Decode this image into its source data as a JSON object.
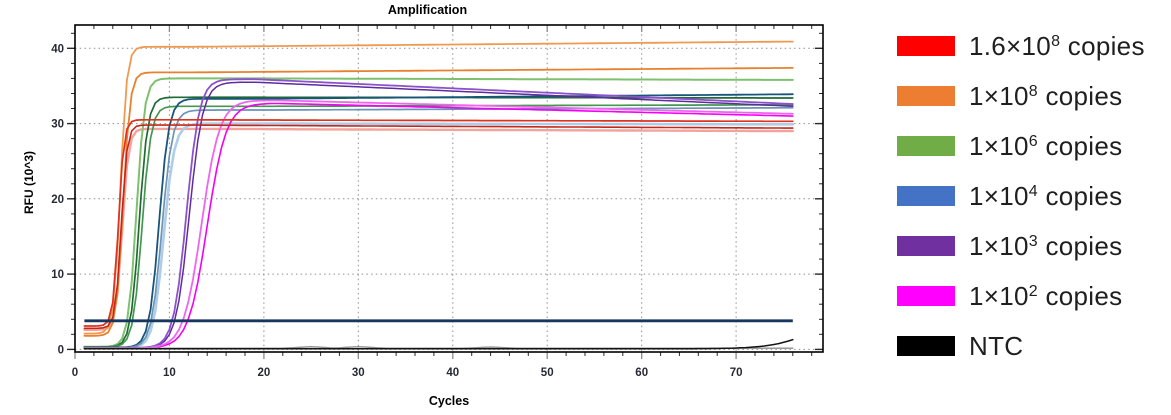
{
  "chart_data": {
    "type": "line",
    "title": "Amplification",
    "xlabel": "Cycles",
    "ylabel": "RFU (10^3)",
    "xlim": [
      0,
      79.2
    ],
    "ylim": [
      -0.35,
      43.1
    ],
    "x_ticks": [
      0,
      10,
      20,
      30,
      40,
      50,
      60,
      70
    ],
    "y_ticks": [
      0,
      10,
      20,
      30,
      40
    ],
    "x_minor_step": 2,
    "y_minor_step": 2,
    "grid": "dotted",
    "legend_position": "right",
    "cycle_range": [
      1,
      76
    ],
    "threshold": {
      "rfu": 3.8,
      "color": "#17375E"
    },
    "series": [
      {
        "id": "1.6e8-shadow",
        "group": "1.6×10⁸ copies",
        "color": "#F2A39B",
        "width": 2.4,
        "baseline": 2.6,
        "plateau": 29.3,
        "midpoint": 5.0,
        "slope": 3.0,
        "drift_from": 12,
        "end": 29.0
      },
      {
        "id": "1e4-shadow",
        "group": "1×10⁴ copies",
        "color": "#AECDE8",
        "width": 2.6,
        "baseline": 0.2,
        "plateau": 30.0,
        "midpoint": 9.4,
        "slope": 1.8,
        "drift_from": 20,
        "end": 29.9
      },
      {
        "id": "1e8-a",
        "group": "1×10⁸ copies",
        "color": "#F09A50",
        "width": 1.8,
        "baseline": 2.1,
        "plateau": 40.2,
        "midpoint": 4.8,
        "slope": 2.9,
        "drift_from": 12,
        "end": 40.9
      },
      {
        "id": "1e8-b",
        "group": "1×10⁸ copies",
        "color": "#E8812F",
        "width": 1.8,
        "baseline": 1.8,
        "plateau": 36.8,
        "midpoint": 5.1,
        "slope": 2.7,
        "drift_from": 12,
        "end": 37.4
      },
      {
        "id": "1e6-a",
        "group": "1×10⁶ copies",
        "color": "#7FC06E",
        "width": 2.0,
        "baseline": 0.35,
        "plateau": 36.0,
        "midpoint": 6.5,
        "slope": 2.3,
        "drift_from": 20,
        "end": 35.8
      },
      {
        "id": "1e6-b",
        "group": "1×10⁶ copies",
        "color": "#1E6B34",
        "width": 1.7,
        "baseline": 0.3,
        "plateau": 33.5,
        "midpoint": 6.8,
        "slope": 2.2,
        "drift_from": 20,
        "end": 33.4
      },
      {
        "id": "1e6-c",
        "group": "1×10⁶ copies",
        "color": "#44984E",
        "width": 1.7,
        "baseline": 0.3,
        "plateau": 32.3,
        "midpoint": 7.1,
        "slope": 2.1,
        "drift_from": 20,
        "end": 32.5
      },
      {
        "id": "1e4-a",
        "group": "1×10⁴ copies",
        "color": "#17557A",
        "width": 1.8,
        "baseline": 0.25,
        "plateau": 33.3,
        "midpoint": 8.9,
        "slope": 1.9,
        "drift_from": 20,
        "end": 33.9
      },
      {
        "id": "1e4-b",
        "group": "1×10⁴ copies",
        "color": "#6C93B8",
        "width": 1.7,
        "baseline": 0.2,
        "plateau": 31.8,
        "midpoint": 9.2,
        "slope": 1.8,
        "drift_from": 20,
        "end": 32.1
      },
      {
        "id": "1e3-a",
        "group": "1×10³ copies",
        "color": "#5F2C9E",
        "width": 1.5,
        "baseline": 0.2,
        "plateau": 35.5,
        "midpoint": 12.1,
        "slope": 1.4,
        "drift_from": 19,
        "end": 32.3
      },
      {
        "id": "1e3-b",
        "group": "1×10³ copies",
        "color": "#8B52CC",
        "width": 1.8,
        "baseline": 0.2,
        "plateau": 35.9,
        "midpoint": 11.8,
        "slope": 1.45,
        "drift_from": 19,
        "end": 32.6
      },
      {
        "id": "1e2-a",
        "group": "1×10² copies",
        "color": "#F400F4",
        "width": 1.6,
        "baseline": 0.15,
        "plateau": 32.7,
        "midpoint": 14.0,
        "slope": 1.0,
        "drift_from": 21,
        "end": 31.0
      },
      {
        "id": "1e2-b",
        "group": "1×10² copies",
        "color": "#EE66EE",
        "width": 1.8,
        "baseline": 0.15,
        "plateau": 33.1,
        "midpoint": 13.4,
        "slope": 1.05,
        "drift_from": 21,
        "end": 31.3
      },
      {
        "id": "1.6e8-a",
        "group": "1.6×10⁸ copies",
        "color": "#E0301E",
        "width": 1.7,
        "baseline": 3.1,
        "plateau": 30.5,
        "midpoint": 4.6,
        "slope": 3.4,
        "drift_from": 12,
        "end": 30.3
      },
      {
        "id": "1.6e8-b",
        "group": "1.6×10⁸ copies",
        "color": "#C3271B",
        "width": 1.6,
        "baseline": 2.8,
        "plateau": 29.8,
        "midpoint": 4.9,
        "slope": 3.2,
        "drift_from": 12,
        "end": 29.4
      },
      {
        "id": "ntc-a",
        "group": "NTC",
        "color": "#8F8F8F",
        "width": 1.4,
        "baseline": 0.15,
        "plateau": 0.15,
        "midpoint": 40,
        "slope": 1.0,
        "drift_from": 99,
        "end": 0.15,
        "bumps": [
          [
            25,
            0.2
          ],
          [
            30,
            0.2
          ],
          [
            44,
            0.15
          ]
        ]
      },
      {
        "id": "ntc-b",
        "group": "NTC",
        "color": "#141414",
        "width": 1.5,
        "baseline": 0.08,
        "plateau": 6.0,
        "midpoint": 79,
        "slope": 0.45,
        "drift_from": 99,
        "end": 6.0
      }
    ],
    "legend": [
      {
        "label": "1.6×10⁸ copies",
        "base": "1.6×10",
        "sup": "8",
        "suffix": " copies",
        "color": "#FE0000"
      },
      {
        "label": "1×10⁸ copies",
        "base": "1×10",
        "sup": "8",
        "suffix": " copies",
        "color": "#ED7D31"
      },
      {
        "label": "1×10⁶ copies",
        "base": "1×10",
        "sup": "6",
        "suffix": " copies",
        "color": "#70AD47"
      },
      {
        "label": "1×10⁴ copies",
        "base": "1×10",
        "sup": "4",
        "suffix": " copies",
        "color": "#4472C4"
      },
      {
        "label": "1×10³ copies",
        "base": "1×10",
        "sup": "3",
        "suffix": " copies",
        "color": "#7030A0"
      },
      {
        "label": "1×10² copies",
        "base": "1×10",
        "sup": "2",
        "suffix": " copies",
        "color": "#FF00FF"
      },
      {
        "label": "NTC",
        "base": "NTC",
        "sup": "",
        "suffix": "",
        "color": "#000000"
      }
    ]
  }
}
